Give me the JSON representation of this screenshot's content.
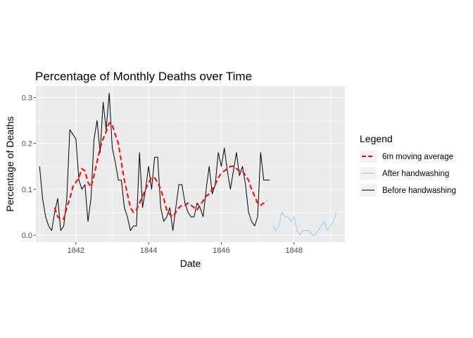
{
  "chart_data": {
    "type": "line",
    "title": "Percentage of Monthly Deaths over Time",
    "xlabel": "Date",
    "ylabel": "Percentage of Deaths",
    "xlim": [
      1840.9,
      1849.4
    ],
    "ylim": [
      -0.0155,
      0.3255
    ],
    "x_ticks": [
      1842,
      1844,
      1846,
      1848
    ],
    "x_tick_labels": [
      "1842",
      "1844",
      "1846",
      "1848"
    ],
    "y_ticks": [
      0.0,
      0.1,
      0.2,
      0.3
    ],
    "y_tick_labels": [
      "0.0",
      "0.1",
      "0.2",
      "0.3"
    ],
    "grid": true,
    "legend": {
      "title": "Legend",
      "position": "right",
      "entries": [
        "6m moving average",
        "After handwashing",
        "Before handwashing"
      ]
    },
    "series": [
      {
        "name": "Before handwashing",
        "color": "#000000",
        "style": "solid",
        "x": [
          1841.0,
          1841.083,
          1841.167,
          1841.25,
          1841.333,
          1841.417,
          1841.5,
          1841.583,
          1841.667,
          1841.75,
          1841.833,
          1841.917,
          1842.0,
          1842.083,
          1842.167,
          1842.25,
          1842.333,
          1842.417,
          1842.5,
          1842.583,
          1842.667,
          1842.75,
          1842.833,
          1842.917,
          1843.0,
          1843.083,
          1843.167,
          1843.25,
          1843.333,
          1843.417,
          1843.5,
          1843.583,
          1843.667,
          1843.75,
          1843.833,
          1843.917,
          1844.0,
          1844.083,
          1844.167,
          1844.25,
          1844.333,
          1844.417,
          1844.5,
          1844.583,
          1844.667,
          1844.75,
          1844.833,
          1844.917,
          1845.0,
          1845.083,
          1845.167,
          1845.25,
          1845.333,
          1845.417,
          1845.5,
          1845.583,
          1845.667,
          1845.75,
          1845.833,
          1845.917,
          1846.0,
          1846.083,
          1846.167,
          1846.25,
          1846.333,
          1846.417,
          1846.5,
          1846.583,
          1846.667,
          1846.75,
          1846.833,
          1846.917,
          1847.0,
          1847.083,
          1847.167,
          1847.25,
          1847.333
        ],
        "values": [
          0.15,
          0.08,
          0.04,
          0.02,
          0.01,
          0.05,
          0.08,
          0.01,
          0.02,
          0.08,
          0.23,
          0.22,
          0.21,
          0.12,
          0.1,
          0.11,
          0.03,
          0.08,
          0.21,
          0.25,
          0.18,
          0.29,
          0.23,
          0.31,
          0.19,
          0.16,
          0.12,
          0.12,
          0.06,
          0.04,
          0.01,
          0.02,
          0.02,
          0.18,
          0.06,
          0.1,
          0.15,
          0.1,
          0.17,
          0.17,
          0.06,
          0.03,
          0.04,
          0.06,
          0.01,
          0.06,
          0.11,
          0.11,
          0.07,
          0.05,
          0.04,
          0.04,
          0.07,
          0.06,
          0.04,
          0.1,
          0.15,
          0.09,
          0.11,
          0.18,
          0.15,
          0.19,
          0.14,
          0.1,
          0.14,
          0.18,
          0.13,
          0.15,
          0.11,
          0.05,
          0.03,
          0.02,
          0.04,
          0.18,
          0.12,
          0.12,
          0.12
        ]
      },
      {
        "name": "After handwashing",
        "color": "#87ceeb",
        "style": "solid",
        "x": [
          1847.417,
          1847.5,
          1847.583,
          1847.667,
          1847.75,
          1847.833,
          1847.917,
          1848.0,
          1848.083,
          1848.167,
          1848.25,
          1848.333,
          1848.417,
          1848.5,
          1848.583,
          1848.667,
          1848.75,
          1848.833,
          1848.917,
          1849.0,
          1849.083,
          1849.167
        ],
        "values": [
          0.02,
          0.01,
          0.02,
          0.05,
          0.04,
          0.04,
          0.03,
          0.04,
          0.01,
          0.0,
          0.01,
          0.01,
          0.01,
          0.0,
          0.0,
          0.01,
          0.02,
          0.03,
          0.01,
          0.02,
          0.03,
          0.05
        ]
      },
      {
        "name": "6m moving average",
        "color": "#ff0000",
        "style": "dashed",
        "x": [
          1841.417,
          1841.5,
          1841.583,
          1841.667,
          1841.75,
          1841.833,
          1841.917,
          1842.0,
          1842.083,
          1842.167,
          1842.25,
          1842.333,
          1842.417,
          1842.5,
          1842.583,
          1842.667,
          1842.75,
          1842.833,
          1842.917,
          1843.0,
          1843.083,
          1843.167,
          1843.25,
          1843.333,
          1843.417,
          1843.5,
          1843.583,
          1843.667,
          1843.75,
          1843.833,
          1843.917,
          1844.0,
          1844.083,
          1844.167,
          1844.25,
          1844.333,
          1844.417,
          1844.5,
          1844.583,
          1844.667,
          1844.75,
          1844.833,
          1844.917,
          1845.0,
          1845.083,
          1845.167,
          1845.25,
          1845.333,
          1845.417,
          1845.5,
          1845.583,
          1845.667,
          1845.75,
          1845.833,
          1845.917,
          1846.0,
          1846.083,
          1846.167,
          1846.25,
          1846.333,
          1846.417,
          1846.5,
          1846.583,
          1846.667,
          1846.75,
          1846.833,
          1846.917,
          1847.0,
          1847.083,
          1847.167,
          1847.25
        ],
        "values": [
          0.06,
          0.04,
          0.035,
          0.035,
          0.06,
          0.08,
          0.105,
          0.115,
          0.125,
          0.145,
          0.14,
          0.115,
          0.105,
          0.13,
          0.16,
          0.19,
          0.21,
          0.225,
          0.245,
          0.24,
          0.22,
          0.2,
          0.16,
          0.12,
          0.09,
          0.06,
          0.05,
          0.055,
          0.07,
          0.085,
          0.1,
          0.115,
          0.125,
          0.125,
          0.115,
          0.1,
          0.08,
          0.055,
          0.045,
          0.04,
          0.05,
          0.06,
          0.065,
          0.065,
          0.07,
          0.065,
          0.06,
          0.055,
          0.065,
          0.075,
          0.085,
          0.09,
          0.1,
          0.11,
          0.125,
          0.135,
          0.14,
          0.145,
          0.15,
          0.15,
          0.145,
          0.14,
          0.14,
          0.13,
          0.12,
          0.1,
          0.085,
          0.07,
          0.065,
          0.07,
          0.075
        ]
      }
    ]
  }
}
